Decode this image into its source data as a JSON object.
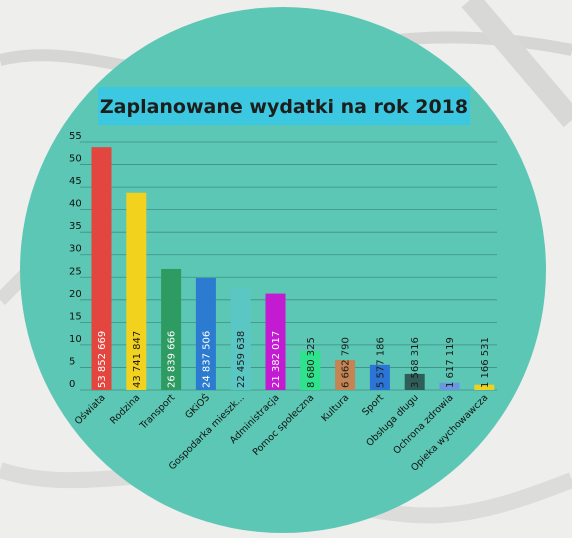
{
  "chart_data": {
    "type": "bar",
    "title": "Zaplanowane wydatki na rok 2018",
    "xlabel": "",
    "ylabel": "",
    "ylim": [
      0,
      55
    ],
    "yticks": [
      0,
      5,
      10,
      15,
      20,
      25,
      30,
      35,
      40,
      45,
      50,
      55
    ],
    "grid": true,
    "legend": "none",
    "categories": [
      "Oświata",
      "Rodzina",
      "Transport",
      "GKiOŚ",
      "Gospodarka mieszk...",
      "Administracja",
      "Pomoc społeczna",
      "Kultura",
      "Sport",
      "Obsługa długu",
      "Ochrona zdrowia",
      "Opieka wychowawcza"
    ],
    "values": [
      53.852669,
      43.741847,
      26.839666,
      24.837506,
      22.459638,
      21.382017,
      8.680325,
      6.66279,
      5.577186,
      3.568316,
      1.617119,
      1.166531
    ],
    "value_labels": [
      "53 852 669",
      "43 741 847",
      "26 839 666",
      "24 837 506",
      "22 459 638",
      "21 382 017",
      "8 680 325",
      "6 662 790",
      "5 577 186",
      "3 568 316",
      "1 617 119",
      "1 166 531"
    ],
    "colors": [
      "#e2463f",
      "#f2d21c",
      "#2e9b63",
      "#2b7bd0",
      "#5bc7c5",
      "#c21bd1",
      "#2fe28c",
      "#c58453",
      "#2c74d6",
      "#2f5d5a",
      "#6a97e0",
      "#efd21f"
    ],
    "label_colors": [
      "#ffffff",
      "#1a1a1a",
      "#ffffff",
      "#ffffff",
      "#1a1a1a",
      "#ffffff",
      "#1a1a1a",
      "#1a1a1a",
      "#1a1a1a",
      "#1a1a1a",
      "#1a1a1a",
      "#1a1a1a"
    ]
  },
  "theme": {
    "circle_color": "#5cc7b4",
    "title_box_color": "#3cc8e0"
  }
}
